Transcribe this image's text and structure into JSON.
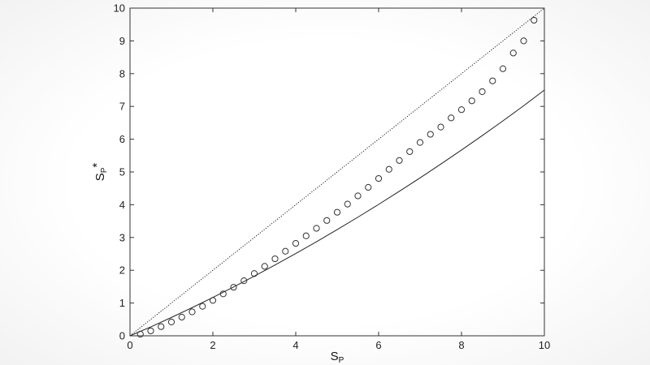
{
  "chart_data": {
    "type": "line",
    "xlabel": "S",
    "xlabel_subscript": "P",
    "ylabel": "S",
    "ylabel_subscript": "P",
    "ylabel_suffix": "*",
    "xlim": [
      0,
      10
    ],
    "ylim": [
      0,
      10
    ],
    "xticks": [
      0,
      2,
      4,
      6,
      8,
      10
    ],
    "yticks": [
      0,
      1,
      2,
      3,
      4,
      5,
      6,
      7,
      8,
      9,
      10
    ],
    "grid": false,
    "legend": "none",
    "series": [
      {
        "style": "dotted-line",
        "x": [
          0,
          10
        ],
        "y": [
          0,
          10
        ]
      },
      {
        "style": "solid-line",
        "x": [
          0,
          0.5,
          1,
          1.5,
          2,
          2.5,
          3,
          3.5,
          4,
          4.5,
          5,
          5.5,
          6,
          6.5,
          7,
          7.5,
          8,
          8.5,
          9,
          9.5,
          10
        ],
        "y": [
          0,
          0.27,
          0.56,
          0.86,
          1.17,
          1.49,
          1.82,
          2.16,
          2.51,
          2.87,
          3.24,
          3.62,
          4.01,
          4.41,
          4.82,
          5.24,
          5.67,
          6.11,
          6.56,
          7.02,
          7.5
        ]
      },
      {
        "style": "circle-markers",
        "x": [
          0.25,
          0.5,
          0.75,
          1.0,
          1.25,
          1.5,
          1.75,
          2.0,
          2.25,
          2.5,
          2.75,
          3.0,
          3.25,
          3.5,
          3.75,
          4.0,
          4.25,
          4.5,
          4.75,
          5.0,
          5.25,
          5.5,
          5.75,
          6.0,
          6.25,
          6.5,
          6.75,
          7.0,
          7.25,
          7.5,
          7.75,
          8.0,
          8.25,
          8.5,
          8.75,
          9.0,
          9.25,
          9.5,
          9.75
        ],
        "y": [
          0.05,
          0.15,
          0.28,
          0.42,
          0.57,
          0.73,
          0.9,
          1.08,
          1.28,
          1.48,
          1.68,
          1.9,
          2.12,
          2.35,
          2.58,
          2.82,
          3.05,
          3.28,
          3.52,
          3.77,
          4.02,
          4.27,
          4.53,
          4.8,
          5.08,
          5.35,
          5.62,
          5.9,
          6.15,
          6.37,
          6.65,
          6.9,
          7.17,
          7.45,
          7.78,
          8.15,
          8.63,
          9.0,
          9.63
        ]
      }
    ]
  },
  "colors": {
    "axis": "#333333",
    "line": "#222222"
  }
}
